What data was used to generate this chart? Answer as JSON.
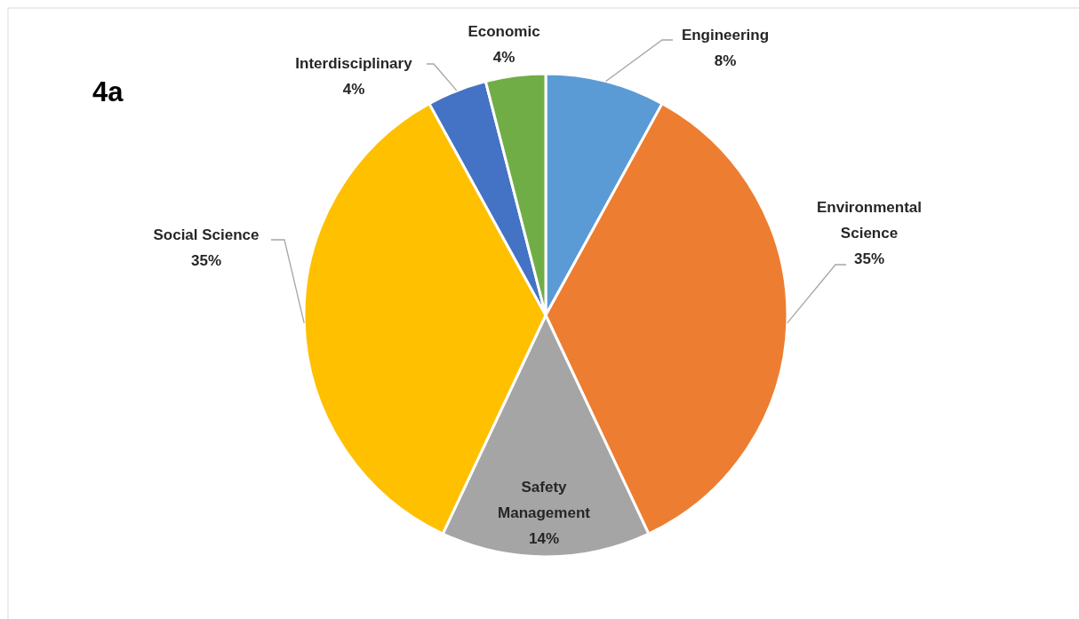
{
  "chart_data": {
    "type": "pie",
    "title": "4a",
    "categories": [
      "Engineering",
      "Environmental Science",
      "Safety Management",
      "Social Science",
      "Interdisciplinary",
      "Economic"
    ],
    "values": [
      8,
      35,
      14,
      35,
      4,
      4
    ],
    "value_labels": [
      "8%",
      "35%",
      "14%",
      "35%",
      "4%",
      "4%"
    ],
    "colors": [
      "#5b9bd5",
      "#ed7d31",
      "#a5a5a5",
      "#ffc000",
      "#4472c4",
      "#70ad47"
    ]
  }
}
